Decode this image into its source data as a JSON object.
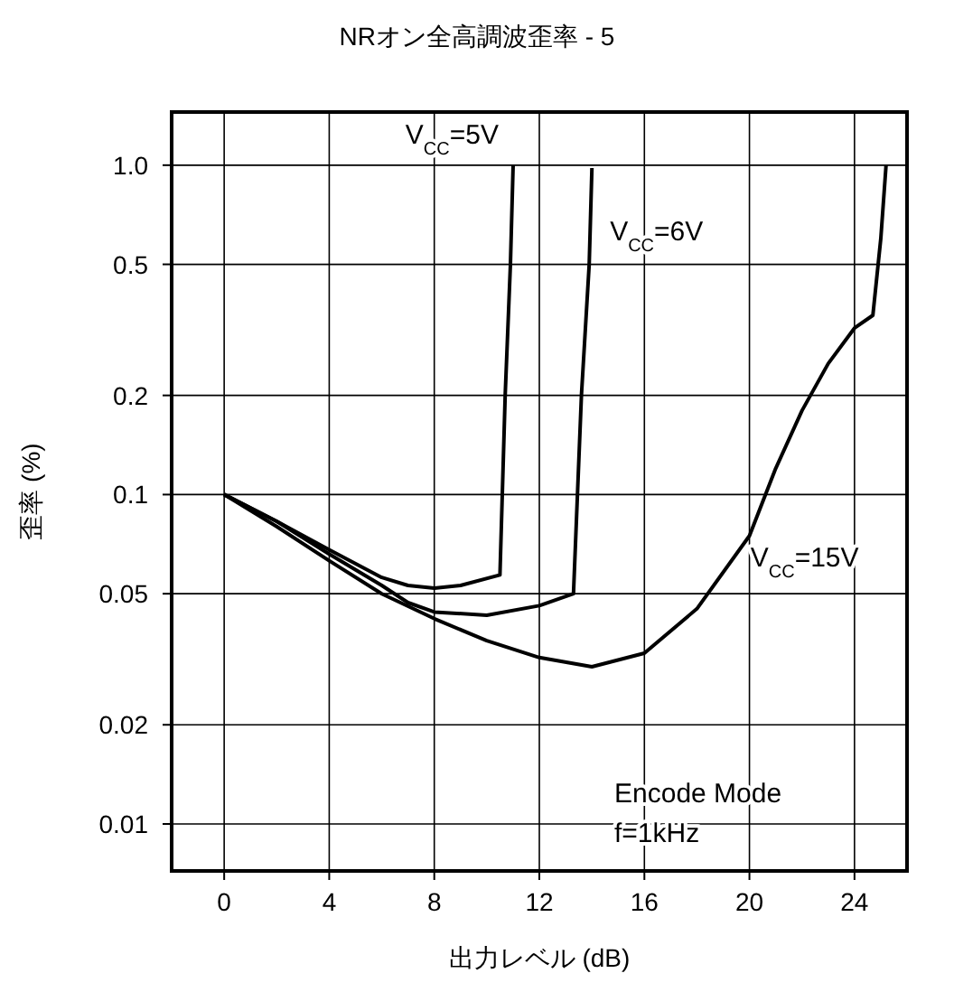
{
  "chart_data": {
    "type": "line",
    "title": "NRオン全高調波歪率 - 5",
    "xlabel": "出力レベル (dB)",
    "ylabel": "歪率 (%)",
    "log": "y",
    "grid": true,
    "legend": false,
    "marker": "none",
    "line_style": "solid",
    "xlim": [
      -2,
      26
    ],
    "xticks": [
      0,
      4,
      8,
      12,
      16,
      20,
      24
    ],
    "ylim": [
      0.0072,
      1.45
    ],
    "yticks": [
      {
        "value": 0.01,
        "label": "0.01"
      },
      {
        "value": 0.02,
        "label": "0.02"
      },
      {
        "value": 0.05,
        "label": "0.05"
      },
      {
        "value": 0.1,
        "label": "0.1"
      },
      {
        "value": 0.2,
        "label": "0.2"
      },
      {
        "value": 0.5,
        "label": "0.5"
      },
      {
        "value": 1,
        "label": "1.0"
      }
    ],
    "series": [
      {
        "name": "V$_{CC}$=5V",
        "color": "#000000",
        "x": [
          0,
          2,
          4,
          6,
          7,
          8,
          9,
          10.5,
          10.7,
          10.9,
          11
        ],
        "values": [
          0.1,
          0.083,
          0.068,
          0.056,
          0.053,
          0.052,
          0.053,
          0.057,
          0.2,
          0.5,
          1.0
        ]
      },
      {
        "name": "V$_{CC}$=6V",
        "color": "#000000",
        "x": [
          0,
          2,
          4,
          6,
          7,
          8,
          10,
          12,
          13.3,
          13.6,
          13.9,
          14
        ],
        "values": [
          0.1,
          0.083,
          0.066,
          0.053,
          0.047,
          0.044,
          0.043,
          0.046,
          0.05,
          0.2,
          0.5,
          0.98
        ]
      },
      {
        "name": "V$_{CC}$=15V",
        "color": "#000000",
        "x": [
          0,
          2,
          4,
          6,
          8,
          10,
          12,
          14,
          16,
          18,
          20,
          21,
          22,
          23,
          24,
          24.7,
          25,
          25.2
        ],
        "values": [
          0.1,
          0.08,
          0.063,
          0.05,
          0.042,
          0.036,
          0.032,
          0.03,
          0.033,
          0.045,
          0.075,
          0.12,
          0.18,
          0.25,
          0.32,
          0.35,
          0.6,
          1.0
        ]
      }
    ],
    "annotations": [
      "Encode Mode",
      "f=1kHz"
    ]
  }
}
